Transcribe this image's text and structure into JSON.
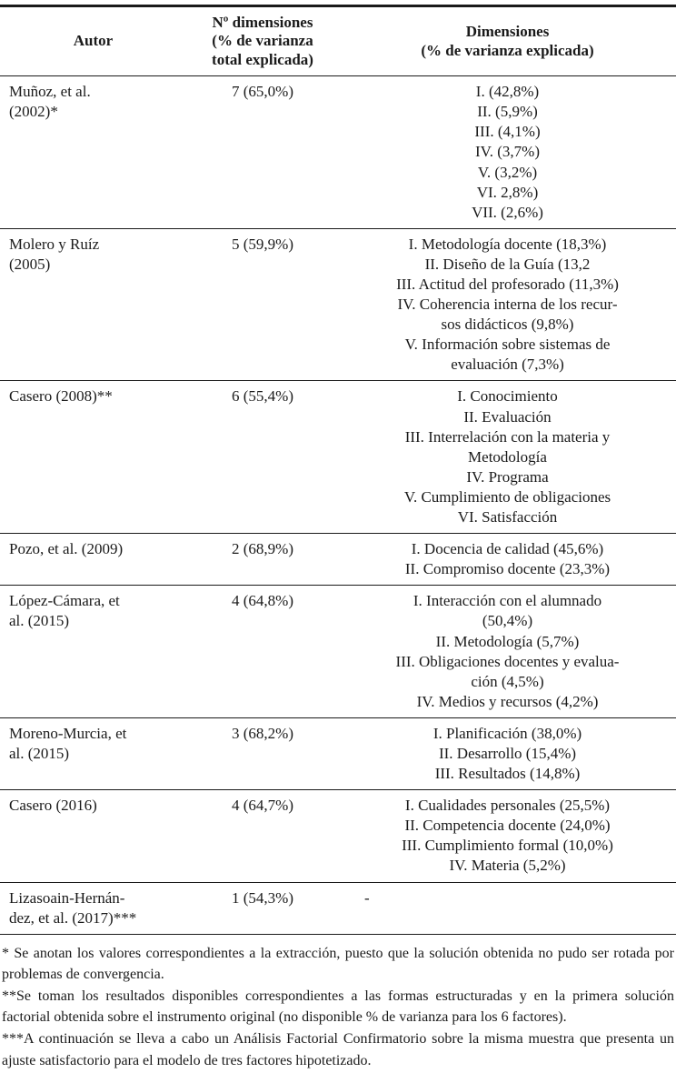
{
  "table": {
    "headers": {
      "autor": "Autor",
      "n_dimensiones": "Nº dimensiones\n(% de varianza\ntotal explicada)",
      "dimensiones": "Dimensiones\n(% de varianza explicada)"
    },
    "rows": [
      {
        "autor": "Muñoz, et al.\n(2002)*",
        "n_dimensiones": "7 (65,0%)",
        "dimensiones": [
          "I. (42,8%)",
          "II. (5,9%)",
          "III. (4,1%)",
          "IV. (3,7%)",
          "V. (3,2%)",
          "VI. 2,8%)",
          "VII. (2,6%)"
        ]
      },
      {
        "autor": "Molero y Ruíz\n(2005)",
        "n_dimensiones": "5 (59,9%)",
        "dimensiones": [
          "I. Metodología docente (18,3%)",
          "II. Diseño de la Guía (13,2",
          "III. Actitud del profesorado (11,3%)",
          "IV. Coherencia interna de los recur-\nsos didácticos (9,8%)",
          "V. Información sobre sistemas de\nevaluación (7,3%)"
        ]
      },
      {
        "autor": "Casero (2008)**",
        "n_dimensiones": "6 (55,4%)",
        "dimensiones": [
          "I. Conocimiento",
          "II. Evaluación",
          "III. Interrelación con la materia y\nMetodología",
          "IV. Programa",
          "V. Cumplimiento de obligaciones",
          "VI. Satisfacción"
        ]
      },
      {
        "autor": "Pozo, et al. (2009)",
        "n_dimensiones": "2 (68,9%)",
        "dimensiones": [
          "I. Docencia de calidad (45,6%)",
          "II. Compromiso docente (23,3%)"
        ]
      },
      {
        "autor": "López-Cámara, et\nal. (2015)",
        "n_dimensiones": "4 (64,8%)",
        "dimensiones": [
          "I. Interacción con el alumnado\n(50,4%)",
          "II. Metodología (5,7%)",
          "III. Obligaciones docentes y evalua-\nción (4,5%)",
          "IV. Medios y recursos (4,2%)"
        ]
      },
      {
        "autor": "Moreno-Murcia, et\nal. (2015)",
        "n_dimensiones": "3 (68,2%)",
        "dimensiones": [
          "I. Planificación (38,0%)",
          "II. Desarrollo (15,4%)",
          "III. Resultados (14,8%)"
        ]
      },
      {
        "autor": "Casero (2016)",
        "n_dimensiones": "4 (64,7%)",
        "dimensiones": [
          "I. Cualidades personales (25,5%)",
          "II. Competencia docente (24,0%)",
          "III. Cumplimiento formal (10,0%)",
          "IV. Materia (5,2%)"
        ]
      },
      {
        "autor": "Lizasoain-Hernán-\ndez, et al. (2017)***",
        "n_dimensiones": "1 (54,3%)",
        "dim_align": "left",
        "dimensiones": [
          "-"
        ]
      }
    ]
  },
  "footnotes": [
    "* Se anotan los valores correspondientes a la extracción, puesto que la solución obtenida no pudo ser rotada por problemas de convergencia.",
    "**Se toman los resultados disponibles correspondientes a las formas estructuradas y en la primera solución factorial obtenida sobre el instrumento original (no disponible % de varianza para los 6 factores).",
    "***A continuación se lleva a cabo un Análisis Factorial Confirmatorio sobre la misma muestra que presenta un ajuste satisfactorio para el modelo de tres factores hipotetizado."
  ]
}
